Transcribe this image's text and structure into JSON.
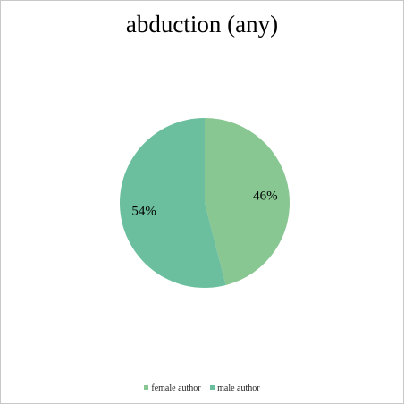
{
  "chart_data": {
    "type": "pie",
    "title": "abduction (any)",
    "categories": [
      "female author",
      "male author"
    ],
    "values": [
      46,
      54
    ],
    "labels": [
      "46%",
      "54%"
    ],
    "colors": [
      "#88c692",
      "#6bbf9e"
    ],
    "legend_position": "bottom"
  }
}
